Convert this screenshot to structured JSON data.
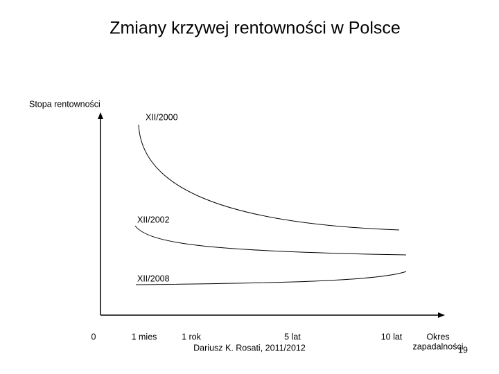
{
  "title": "Zmiany krzywej rentowności w Polsce",
  "y_axis_label": "Stopa rentowności",
  "curves": [
    {
      "label": "XII/2000"
    },
    {
      "label": "XII/2002"
    },
    {
      "label": "XII/2008"
    }
  ],
  "x_labels": [
    "0",
    "1 mies",
    "1 rok",
    "5 lat",
    "10 lat"
  ],
  "x_axis_label": [
    "Okres",
    "zapadalności"
  ],
  "footer": "Dariusz K. Rosati, 2011/2012",
  "page_number": "19"
}
